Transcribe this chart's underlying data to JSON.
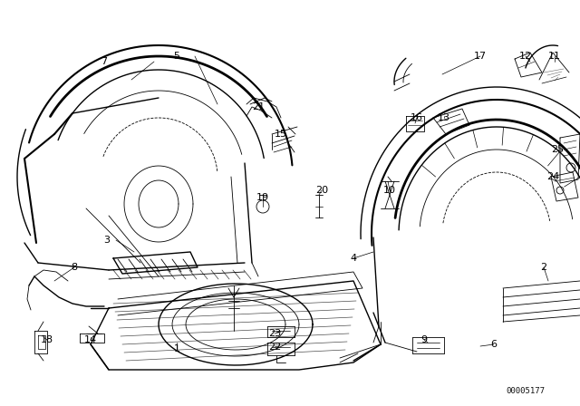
{
  "bg_color": "#ffffff",
  "line_color": "#000000",
  "watermark": "00005177",
  "figsize": [
    6.4,
    4.48
  ],
  "dpi": 100,
  "labels": [
    [
      "7",
      115,
      68
    ],
    [
      "5",
      195,
      62
    ],
    [
      "21",
      285,
      118
    ],
    [
      "15",
      310,
      148
    ],
    [
      "19",
      290,
      218
    ],
    [
      "20",
      355,
      210
    ],
    [
      "10",
      430,
      210
    ],
    [
      "3",
      118,
      265
    ],
    [
      "8",
      82,
      295
    ],
    [
      "1",
      195,
      385
    ],
    [
      "18",
      52,
      375
    ],
    [
      "14",
      100,
      375
    ],
    [
      "23",
      303,
      368
    ],
    [
      "22",
      303,
      383
    ],
    [
      "9",
      468,
      375
    ],
    [
      "4",
      390,
      285
    ],
    [
      "17",
      530,
      62
    ],
    [
      "12",
      580,
      62
    ],
    [
      "11",
      612,
      62
    ],
    [
      "16",
      460,
      130
    ],
    [
      "13",
      490,
      130
    ],
    [
      "25",
      615,
      165
    ],
    [
      "24",
      610,
      195
    ],
    [
      "2",
      600,
      295
    ],
    [
      "6",
      545,
      380
    ]
  ]
}
